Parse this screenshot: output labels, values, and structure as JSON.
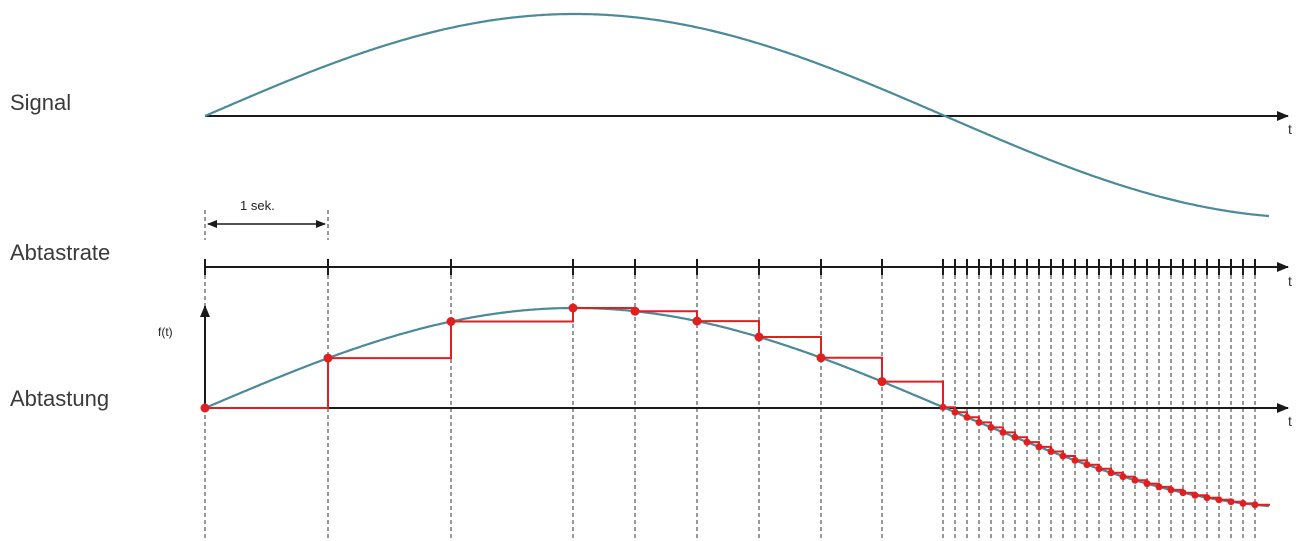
{
  "labels": {
    "signal": "Signal",
    "abtastrate": "Abtastrate",
    "abtastung": "Abtastung",
    "ft": "f(t)",
    "interval": "1 sek.",
    "t": "t"
  },
  "colors": {
    "signal_curve": "#4a8a9a",
    "samples": "#e02020",
    "axis": "#1a1a1a",
    "guides": "#333333"
  },
  "sampling": {
    "coarse_ticks": 9,
    "dense_ticks": 27
  }
}
